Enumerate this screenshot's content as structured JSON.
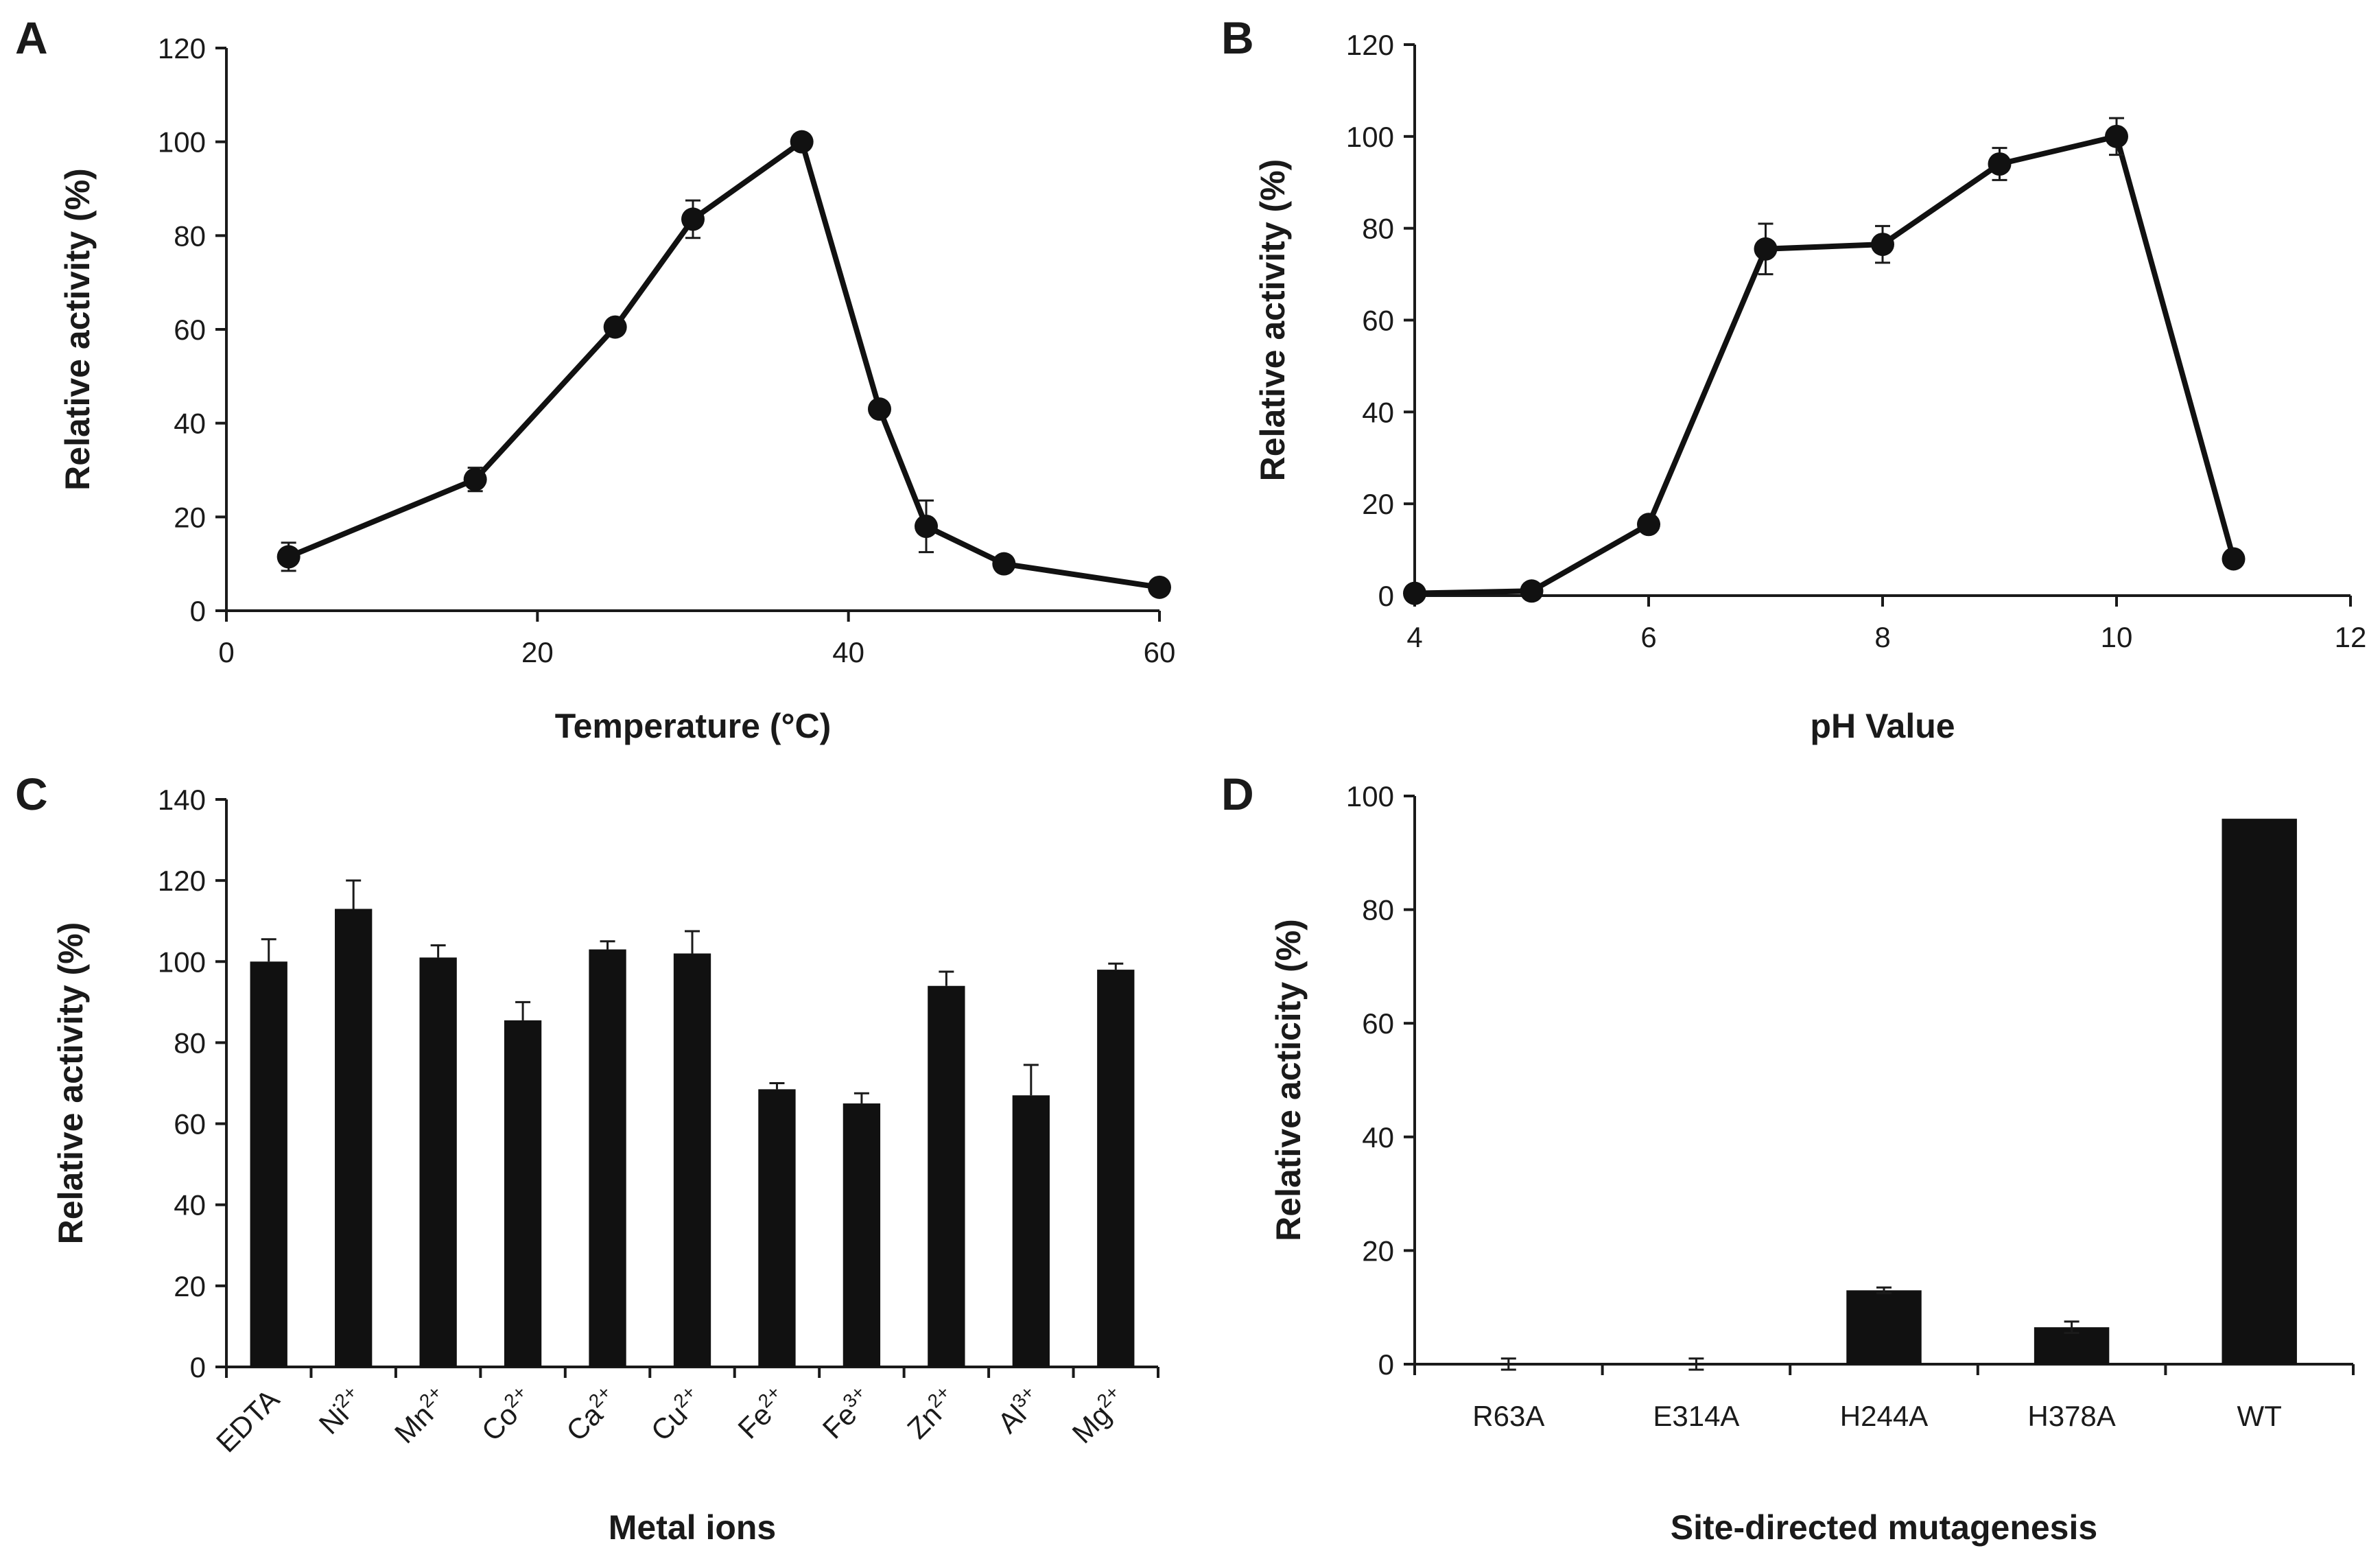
{
  "colors": {
    "ink": "#1a1a1a",
    "bar_fill": "#111111",
    "background": "#ffffff"
  },
  "chart_data": [
    {
      "panel": "A",
      "type": "line",
      "xlabel": "Temperature (°C)",
      "ylabel": "Relative activity (%)",
      "xlim": [
        0,
        60
      ],
      "ylim": [
        0,
        120
      ],
      "x_ticks": [
        0,
        20,
        40,
        60
      ],
      "y_ticks": [
        0,
        20,
        40,
        60,
        80,
        100,
        120
      ],
      "points": [
        {
          "x": 4,
          "y": 11.5,
          "err": 3
        },
        {
          "x": 16,
          "y": 28,
          "err": 2.5
        },
        {
          "x": 25,
          "y": 60.5,
          "err": 1.5
        },
        {
          "x": 30,
          "y": 83.5,
          "err": 4
        },
        {
          "x": 37,
          "y": 100,
          "err": 1
        },
        {
          "x": 42,
          "y": 43,
          "err": 1.5
        },
        {
          "x": 45,
          "y": 18,
          "err": 5.5
        },
        {
          "x": 50,
          "y": 10,
          "err": 1
        },
        {
          "x": 60,
          "y": 5,
          "err": 1
        }
      ]
    },
    {
      "panel": "B",
      "type": "line",
      "xlabel": "pH Value",
      "ylabel": "Relative activity (%)",
      "xlim": [
        4,
        12
      ],
      "ylim": [
        0,
        120
      ],
      "x_ticks": [
        4,
        6,
        8,
        10,
        12
      ],
      "y_ticks": [
        0,
        20,
        40,
        60,
        80,
        100,
        120
      ],
      "points": [
        {
          "x": 4,
          "y": 0.5,
          "err": 1
        },
        {
          "x": 5,
          "y": 1,
          "err": 1
        },
        {
          "x": 6,
          "y": 15.5,
          "err": 1.5
        },
        {
          "x": 7,
          "y": 75.5,
          "err": 5.5
        },
        {
          "x": 8,
          "y": 76.5,
          "err": 4
        },
        {
          "x": 9,
          "y": 94,
          "err": 3.5
        },
        {
          "x": 10,
          "y": 100,
          "err": 4
        },
        {
          "x": 11,
          "y": 8,
          "err": 1
        }
      ]
    },
    {
      "panel": "C",
      "type": "bar",
      "xlabel": "Metal ions",
      "ylabel": "Relative activity (%)",
      "ylim": [
        0,
        140
      ],
      "y_ticks": [
        0,
        20,
        40,
        60,
        80,
        100,
        120,
        140
      ],
      "categories": [
        {
          "base": "EDTA",
          "sup": ""
        },
        {
          "base": "Ni",
          "sup": "2+"
        },
        {
          "base": "Mn",
          "sup": "2+"
        },
        {
          "base": "Co",
          "sup": "2+"
        },
        {
          "base": "Ca",
          "sup": "2+"
        },
        {
          "base": "Cu",
          "sup": "2+"
        },
        {
          "base": "Fe",
          "sup": "2+"
        },
        {
          "base": "Fe",
          "sup": "3+"
        },
        {
          "base": "Zn",
          "sup": "2+"
        },
        {
          "base": "Al",
          "sup": "3+"
        },
        {
          "base": "Mg",
          "sup": "2+"
        }
      ],
      "values": [
        100,
        113,
        101,
        85.5,
        103,
        102,
        68.5,
        65,
        94,
        67,
        98
      ],
      "errors": [
        5.5,
        7,
        3,
        4.5,
        2,
        5.5,
        1.5,
        2.5,
        3.5,
        7.5,
        1.5
      ]
    },
    {
      "panel": "D",
      "type": "bar",
      "xlabel": "Site-directed mutagenesis",
      "ylabel": "Relative acticity (%)",
      "ylim": [
        0,
        100
      ],
      "y_ticks": [
        0,
        20,
        40,
        60,
        80,
        100
      ],
      "categories": [
        "R63A",
        "E314A",
        "H244A",
        "H378A",
        "WT"
      ],
      "values": [
        0,
        0,
        13,
        6.5,
        96
      ],
      "errors": [
        1,
        1,
        0.5,
        1,
        0
      ]
    }
  ]
}
